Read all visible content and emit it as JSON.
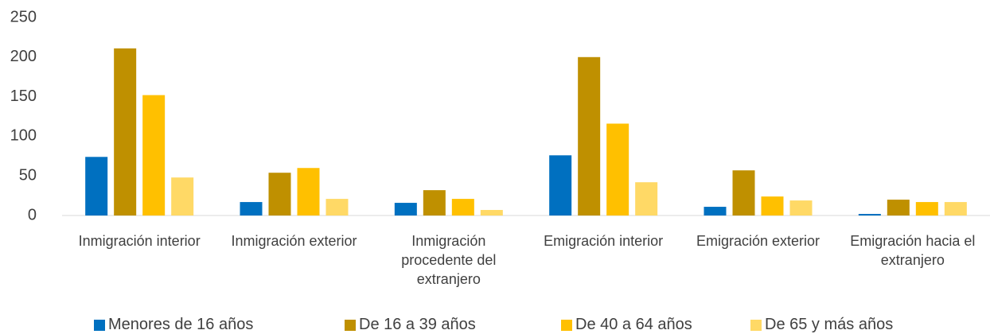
{
  "chart_data": {
    "type": "bar",
    "categories": [
      "Inmigración interior",
      "Inmigración exterior",
      "Inmigración procedente del extranjero",
      "Emigración interior",
      "Emigración exterior",
      "Emigración hacia el extranjero"
    ],
    "series": [
      {
        "name": "Menores de 16 años",
        "color": "#0070c0",
        "values": [
          74,
          17,
          16,
          76,
          11,
          2
        ]
      },
      {
        "name": "De 16 a 39 años",
        "color": "#bf9000",
        "values": [
          211,
          54,
          32,
          200,
          57,
          20
        ]
      },
      {
        "name": "De 40 a 64 años",
        "color": "#ffc000",
        "values": [
          152,
          60,
          21,
          116,
          24,
          17
        ]
      },
      {
        "name": "De 65 y más años",
        "color": "#ffd966",
        "values": [
          48,
          21,
          7,
          42,
          19,
          17
        ]
      }
    ],
    "ylim": [
      0,
      250
    ],
    "yticks": [
      0,
      50,
      100,
      150,
      200,
      250
    ],
    "grid": false,
    "legend": "bottom"
  }
}
